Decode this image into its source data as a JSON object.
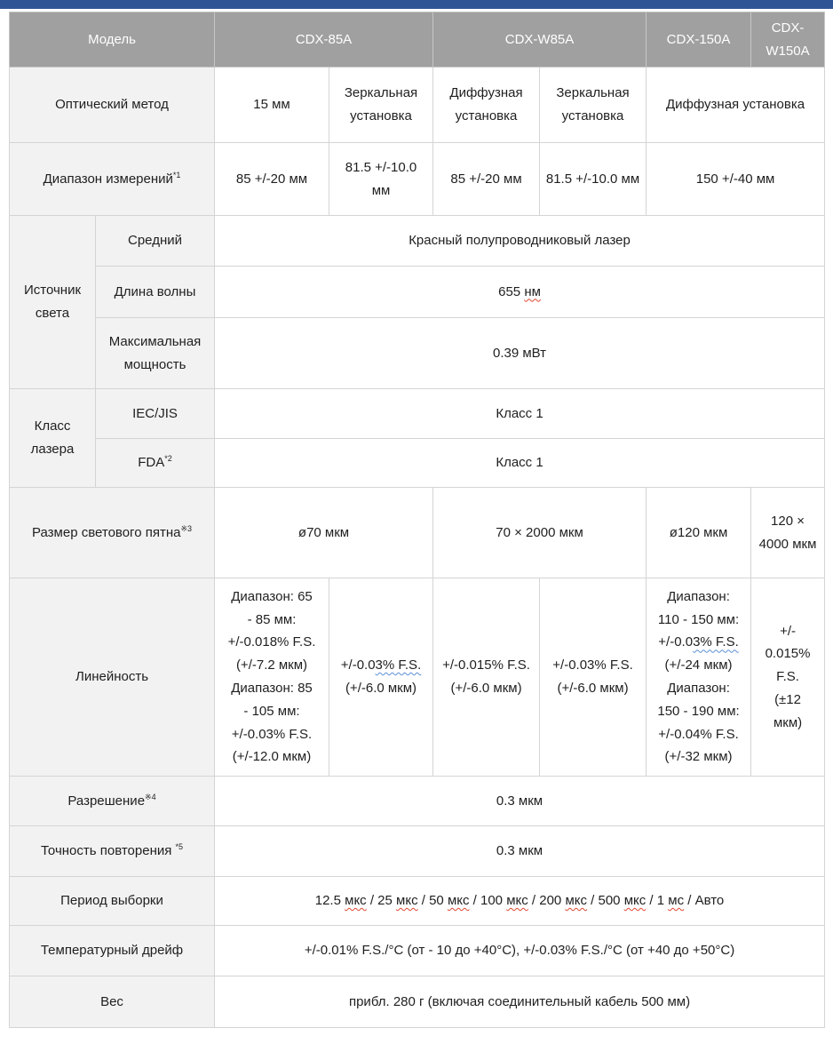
{
  "colors": {
    "top_bar": "#2F5496",
    "header_bg": "#A0A0A0",
    "header_text": "#FFFFFF",
    "label_bg": "#F2F2F2",
    "border": "#D4D4D4",
    "squiggle_red": "#E0462F",
    "squiggle_blue": "#5B8FD4"
  },
  "table": {
    "header": {
      "model": "Модель",
      "cdx85a": "CDX-85A",
      "cdxw85a": "CDX-W85A",
      "cdx150a": "CDX-150A",
      "cdxw150a": "CDX-W150A"
    },
    "optical": {
      "label": "Оптический метод",
      "v1": "15 мм",
      "v2": "Зеркальная установка",
      "v3": "Диффузная установка",
      "v4": "Зеркальная установка",
      "v56": "Диффузная установка"
    },
    "range": {
      "label": "Диапазон измерений",
      "sup": "*1",
      "v1": "85 +/-20 мм",
      "v2": "81.5 +/-10.0 мм",
      "v3": "85 +/-20 мм",
      "v4": "81.5 +/-10.0 мм",
      "v56": "150 +/-40 мм"
    },
    "light_source": {
      "group": "Источник света",
      "avg_label": "Средний",
      "avg_value": "Красный полупроводниковый лазер",
      "wavelength_label": "Длина волны",
      "wavelength_segments": [
        {
          "t": "655 "
        },
        {
          "t": "нм",
          "m": "red"
        }
      ],
      "maxpower_label": "Максимальная мощность",
      "maxpower_value": "0.39 мВт"
    },
    "laser_class": {
      "group": "Класс лазера",
      "iec_label": "IEC/JIS",
      "iec_value": "Класс 1",
      "fda_label": "FDA",
      "fda_sup": "*2",
      "fda_value": "Класс 1"
    },
    "spot": {
      "label": "Размер светового пятна",
      "sup": "※3",
      "v12": "ø70 мкм",
      "v34": "70 × 2000 мкм",
      "v5": "ø120 мкм",
      "v6": "120 × 4000 мкм"
    },
    "linearity": {
      "label": "Линейность",
      "c1_segments": [
        {
          "t": "Диапазон: 65"
        },
        {
          "br": true
        },
        {
          "t": "- 85 мм:"
        },
        {
          "br": true
        },
        {
          "t": "+/-0.018% F.S."
        },
        {
          "br": true
        },
        {
          "t": "(+/-7.2 мкм)"
        },
        {
          "br": true
        },
        {
          "t": "Диапазон: 85"
        },
        {
          "br": true
        },
        {
          "t": "- 105 мм:"
        },
        {
          "br": true
        },
        {
          "t": "+/-0.03% F.S."
        },
        {
          "br": true
        },
        {
          "t": "(+/-12.0 мкм)"
        }
      ],
      "c2_segments": [
        {
          "t": "+/-0.0"
        },
        {
          "t": "3% F.S.",
          "m": "blue"
        },
        {
          "br": true
        },
        {
          "t": "(+/-6.0 мкм)"
        }
      ],
      "c3_segments": [
        {
          "t": "+/-0.015% F.S."
        },
        {
          "br": true
        },
        {
          "t": "(+/-6.0 мкм)"
        }
      ],
      "c4_segments": [
        {
          "t": "+/-0.03% F.S."
        },
        {
          "br": true
        },
        {
          "t": "(+/-6.0 мкм)"
        }
      ],
      "c5_segments": [
        {
          "t": "Диапазон:"
        },
        {
          "br": true
        },
        {
          "t": "110 - 150 мм:"
        },
        {
          "br": true
        },
        {
          "t": "+/-0.0"
        },
        {
          "t": "3% F.S.",
          "m": "blue"
        },
        {
          "br": true
        },
        {
          "t": "(+/-24 мкм)"
        },
        {
          "br": true
        },
        {
          "t": "Диапазон:"
        },
        {
          "br": true
        },
        {
          "t": "150 - 190 мм:"
        },
        {
          "br": true
        },
        {
          "t": "+/-0.04% F.S."
        },
        {
          "br": true
        },
        {
          "t": "(+/-32 мкм)"
        }
      ],
      "c6_segments": [
        {
          "t": "+/-"
        },
        {
          "br": true
        },
        {
          "t": "0.015%"
        },
        {
          "br": true
        },
        {
          "t": "F.S."
        },
        {
          "br": true
        },
        {
          "t": "(±12"
        },
        {
          "br": true
        },
        {
          "t": "мкм)"
        }
      ]
    },
    "resolution": {
      "label": "Разрешение",
      "sup": "※4",
      "value": "0.3 мкм"
    },
    "repeatability": {
      "label": "Точность повторения ",
      "sup": "*5",
      "value": "0.3 мкм"
    },
    "sampling": {
      "label": "Период выборки",
      "segments": [
        {
          "t": "12.5 "
        },
        {
          "t": "мкс",
          "m": "red"
        },
        {
          "t": " / 25 "
        },
        {
          "t": "мкс",
          "m": "red"
        },
        {
          "t": " / 50 "
        },
        {
          "t": "мкс",
          "m": "red"
        },
        {
          "t": " / 100 "
        },
        {
          "t": "мкс",
          "m": "red"
        },
        {
          "t": " / 200 "
        },
        {
          "t": "мкс",
          "m": "red"
        },
        {
          "t": " / 500 "
        },
        {
          "t": "мкс",
          "m": "red"
        },
        {
          "t": " / 1 "
        },
        {
          "t": "мс",
          "m": "red"
        },
        {
          "t": " / Авто"
        }
      ]
    },
    "drift": {
      "label": "Температурный дрейф",
      "value": "+/-0.01% F.S./°C (от - 10 до +40°C), +/-0.03% F.S./°C (от +40 до +50°C)"
    },
    "weight": {
      "label": "Вес",
      "value": "прибл. 280 г (включая соединительный кабель 500 мм)"
    }
  }
}
